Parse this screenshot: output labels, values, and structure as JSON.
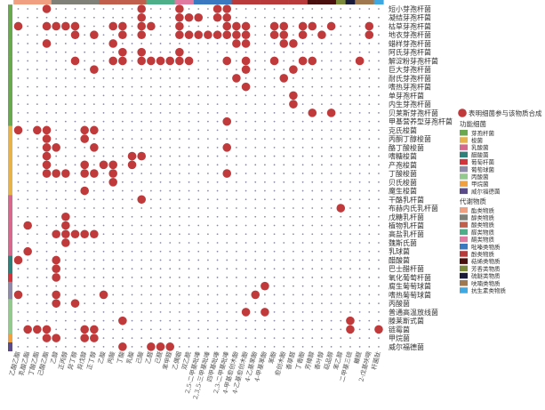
{
  "chart_data": {
    "type": "heatmap",
    "legend": {
      "marker_label": "表明细菌参与该物质合成",
      "marker_color": "#c0393b",
      "function_title": "功能细菌",
      "function_groups": [
        {
          "name": "芽孢杆菌",
          "color": "#6aa84f"
        },
        {
          "name": "梭菌",
          "color": "#e6b24c"
        },
        {
          "name": "乳酸菌",
          "color": "#d4698d"
        },
        {
          "name": "醋酸菌",
          "color": "#2f7f7a"
        },
        {
          "name": "葡萄杆菌",
          "color": "#d2363c"
        },
        {
          "name": "葡萄球菌",
          "color": "#8f89aa"
        },
        {
          "name": "丙酸菌",
          "color": "#93c98e"
        },
        {
          "name": "甲烷菌",
          "color": "#f0a040"
        },
        {
          "name": "威尔福德菌",
          "color": "#5b4b8a"
        }
      ],
      "metabolite_title": "代谢物质",
      "metabolite_groups": [
        {
          "name": "酯类物质",
          "color": "#f0a080"
        },
        {
          "name": "醇类物质",
          "color": "#7f8077"
        },
        {
          "name": "酸类物质",
          "color": "#c0604c"
        },
        {
          "name": "醛类物质",
          "color": "#4caf8a"
        },
        {
          "name": "酮类物质",
          "color": "#e07aa0"
        },
        {
          "name": "吡嗪类物质",
          "color": "#3a78c0"
        },
        {
          "name": "酚类物质",
          "color": "#b83a3a"
        },
        {
          "name": "萜烯类物质",
          "color": "#4a1010"
        },
        {
          "name": "芳香类物质",
          "color": "#7a8a3a"
        },
        {
          "name": "硫醚类物质",
          "color": "#1a1a3a"
        },
        {
          "name": "呋喃类物质",
          "color": "#a07850"
        },
        {
          "name": "抗生素类物质",
          "color": "#40a8e0"
        }
      ]
    },
    "columns": [
      {
        "name": "乙酸乙酯",
        "group": 0
      },
      {
        "name": "乳酸乙酯",
        "group": 0
      },
      {
        "name": "丁酸乙酯",
        "group": 0
      },
      {
        "name": "己酸乙酯",
        "group": 0
      },
      {
        "name": "乙醇",
        "group": 1
      },
      {
        "name": "正丙醇",
        "group": 1
      },
      {
        "name": "异丁醇",
        "group": 1
      },
      {
        "name": "异戊醇",
        "group": 1
      },
      {
        "name": "正丁醇",
        "group": 1
      },
      {
        "name": "乙酸",
        "group": 2
      },
      {
        "name": "丙酸",
        "group": 2
      },
      {
        "name": "丁酸",
        "group": 2
      },
      {
        "name": "乳酸",
        "group": 2
      },
      {
        "name": "己酸",
        "group": 2
      },
      {
        "name": "乙醛",
        "group": 3
      },
      {
        "name": "己醛",
        "group": 3
      },
      {
        "name": "苯甲醛",
        "group": 3
      },
      {
        "name": "乙偶姻",
        "group": 4
      },
      {
        "name": "双乙酰",
        "group": 4
      },
      {
        "name": "2,5-二甲基吡嗪",
        "group": 5
      },
      {
        "name": "2,3,5-三甲基吡嗪",
        "group": 5
      },
      {
        "name": "四甲基吡嗪",
        "group": 5
      },
      {
        "name": "2,3-二甲基吡嗪",
        "group": 5
      },
      {
        "name": "4-甲基愈创木酚",
        "group": 6
      },
      {
        "name": "4-乙基愈创木酚",
        "group": 6
      },
      {
        "name": "4-乙基苯酚",
        "group": 6
      },
      {
        "name": "4-甲基苯酚",
        "group": 6
      },
      {
        "name": "苯酚",
        "group": 6
      },
      {
        "name": "愈创木酚",
        "group": 6
      },
      {
        "name": "香草醛",
        "group": 6
      },
      {
        "name": "丁香酚",
        "group": 6
      },
      {
        "name": "芳樟醇",
        "group": 7
      },
      {
        "name": "香叶醇",
        "group": 7
      },
      {
        "name": "萜品醇",
        "group": 7
      },
      {
        "name": "苯乙醇",
        "group": 8
      },
      {
        "name": "二甲基三硫",
        "group": 9
      },
      {
        "name": "糠醛",
        "group": 10
      },
      {
        "name": "2-戊基呋喃",
        "group": 10
      },
      {
        "name": "杆菌肽",
        "group": 11
      }
    ],
    "rows": [
      {
        "name": "短小芽孢杆菌",
        "group": 0,
        "cols": [
          3,
          13,
          17,
          21,
          22
        ]
      },
      {
        "name": "凝结芽孢杆菌",
        "group": 0,
        "cols": [
          13,
          17,
          18,
          19,
          21,
          22
        ]
      },
      {
        "name": "枯草芽孢杆菌",
        "group": 0,
        "cols": [
          0,
          3,
          4,
          5,
          6,
          10,
          11,
          13,
          14,
          17,
          22,
          23,
          24,
          27,
          28,
          30,
          31,
          33,
          37
        ]
      },
      {
        "name": "地衣芽孢杆菌",
        "group": 0,
        "cols": [
          6,
          8,
          11,
          13,
          17,
          18,
          19,
          20,
          21,
          22,
          23,
          24,
          27,
          28,
          30,
          32,
          37
        ]
      },
      {
        "name": "蜡样芽孢杆菌",
        "group": 0,
        "cols": [
          3,
          10,
          23,
          24,
          28,
          29
        ]
      },
      {
        "name": "阿氏芽孢杆菌",
        "group": 0,
        "cols": [
          11,
          13,
          17
        ]
      },
      {
        "name": "解淀粉芽孢杆菌",
        "group": 0,
        "cols": [
          6,
          10,
          11,
          13,
          14,
          15,
          16,
          17,
          18,
          22,
          24,
          27,
          30,
          31,
          36
        ]
      },
      {
        "name": "巨大芽孢杆菌",
        "group": 0,
        "cols": [
          8,
          24,
          29
        ]
      },
      {
        "name": "耐氏芽孢杆菌",
        "group": 0,
        "cols": [
          23,
          28
        ]
      },
      {
        "name": "嗜热芽孢杆菌",
        "group": 0,
        "cols": [
          24
        ]
      },
      {
        "name": "单芽孢杆菌",
        "group": 0,
        "cols": [
          29
        ]
      },
      {
        "name": "内生芽孢杆菌",
        "group": 0,
        "cols": [
          29
        ]
      },
      {
        "name": "贝莱斯芽孢杆菌",
        "group": 0,
        "cols": [
          31,
          33
        ]
      },
      {
        "name": "甲基营养型芽孢杆菌",
        "group": 0,
        "cols": [
          22
        ]
      },
      {
        "name": "克氏梭菌",
        "group": 1,
        "cols": [
          0,
          2,
          3,
          7,
          8
        ]
      },
      {
        "name": "丙酮丁醇梭菌",
        "group": 1,
        "cols": [
          3,
          7
        ]
      },
      {
        "name": "酪丁酸梭菌",
        "group": 1,
        "cols": [
          3,
          4,
          8,
          22
        ]
      },
      {
        "name": "嗜糖梭菌",
        "group": 1,
        "cols": [
          3,
          12,
          13
        ]
      },
      {
        "name": "产孢梭菌",
        "group": 1,
        "cols": [
          3,
          7,
          9,
          10,
          12
        ]
      },
      {
        "name": "丁酸梭菌",
        "group": 1,
        "cols": [
          3,
          4,
          5,
          7,
          8,
          10,
          22
        ]
      },
      {
        "name": "贝氏梭菌",
        "group": 1,
        "cols": [
          10
        ]
      },
      {
        "name": "魔生梭菌",
        "group": 1,
        "cols": [
          7
        ]
      },
      {
        "name": "干酪乳杆菌",
        "group": 2,
        "cols": [
          13
        ]
      },
      {
        "name": "布赫内氏乳杆菌",
        "group": 2,
        "cols": [
          34
        ]
      },
      {
        "name": "戊糖乳杆菌",
        "group": 2,
        "cols": [
          5
        ]
      },
      {
        "name": "植物乳杆菌",
        "group": 2,
        "cols": [
          1,
          5
        ]
      },
      {
        "name": "高盐乳杆菌",
        "group": 2,
        "cols": [
          4,
          5,
          6,
          7,
          8
        ]
      },
      {
        "name": "魏斯氏菌",
        "group": 2,
        "cols": [
          5
        ]
      },
      {
        "name": "乳球菌",
        "group": 2,
        "cols": [
          1
        ]
      },
      {
        "name": "醋酸菌",
        "group": 3,
        "cols": [
          0,
          4
        ]
      },
      {
        "name": "巴士醋杆菌",
        "group": 3,
        "cols": [
          4
        ]
      },
      {
        "name": "氧化葡萄杆菌",
        "group": 4,
        "cols": [
          4
        ]
      },
      {
        "name": "腐生葡萄球菌",
        "group": 5,
        "cols": [
          26
        ]
      },
      {
        "name": "嗜热葡萄球菌",
        "group": 5,
        "cols": [
          0,
          4,
          9,
          25
        ]
      },
      {
        "name": "丙酸菌",
        "group": 6,
        "cols": [
          4,
          6
        ]
      },
      {
        "name": "普通高温放线菌",
        "group": 6,
        "cols": [
          24,
          26
        ]
      },
      {
        "name": "滕莱斯式菌",
        "group": 6,
        "cols": [
          11,
          35
        ]
      },
      {
        "name": "链霉菌",
        "group": 6,
        "cols": [
          1,
          2,
          3,
          7,
          8,
          35,
          38
        ]
      },
      {
        "name": "甲烷菌",
        "group": 7,
        "cols": [
          3,
          4,
          7,
          8
        ]
      },
      {
        "name": "威尔福德菌",
        "group": 8,
        "cols": [
          11,
          14,
          15,
          16
        ]
      }
    ]
  }
}
